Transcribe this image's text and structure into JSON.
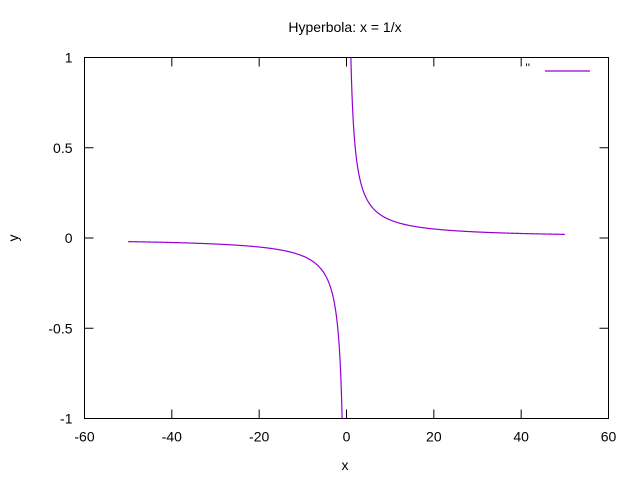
{
  "chart_data": {
    "type": "line",
    "title": "Hyperbola:  x = 1/x",
    "xlabel": "x",
    "ylabel": "y",
    "xlim": [
      -60,
      60
    ],
    "ylim": [
      -1,
      1
    ],
    "xticks": [
      -60,
      -40,
      -20,
      0,
      20,
      40,
      60
    ],
    "yticks": [
      -1,
      -0.5,
      0,
      0.5,
      1
    ],
    "xtick_labels": [
      "-60",
      "-40",
      "-20",
      "0",
      "20",
      "40",
      "60"
    ],
    "ytick_labels": [
      "-1",
      "-0.5",
      "0",
      "0.5",
      "1"
    ],
    "grid": false,
    "legend_position": "top-right",
    "series": [
      {
        "name": "''",
        "color": "#9400d3",
        "domain": [
          -50,
          50
        ],
        "points": [
          [
            -50,
            -0.02
          ],
          [
            -40,
            -0.025
          ],
          [
            -30,
            -0.0333
          ],
          [
            -20,
            -0.05
          ],
          [
            -10,
            -0.1
          ],
          [
            -5,
            -0.2
          ],
          [
            -3,
            -0.3333
          ],
          [
            -2,
            -0.5
          ],
          [
            -1,
            -1
          ],
          [
            1,
            1
          ],
          [
            2,
            0.5
          ],
          [
            3,
            0.3333
          ],
          [
            5,
            0.2
          ],
          [
            10,
            0.1
          ],
          [
            20,
            0.05
          ],
          [
            30,
            0.0333
          ],
          [
            40,
            0.025
          ],
          [
            50,
            0.02
          ]
        ]
      }
    ]
  }
}
